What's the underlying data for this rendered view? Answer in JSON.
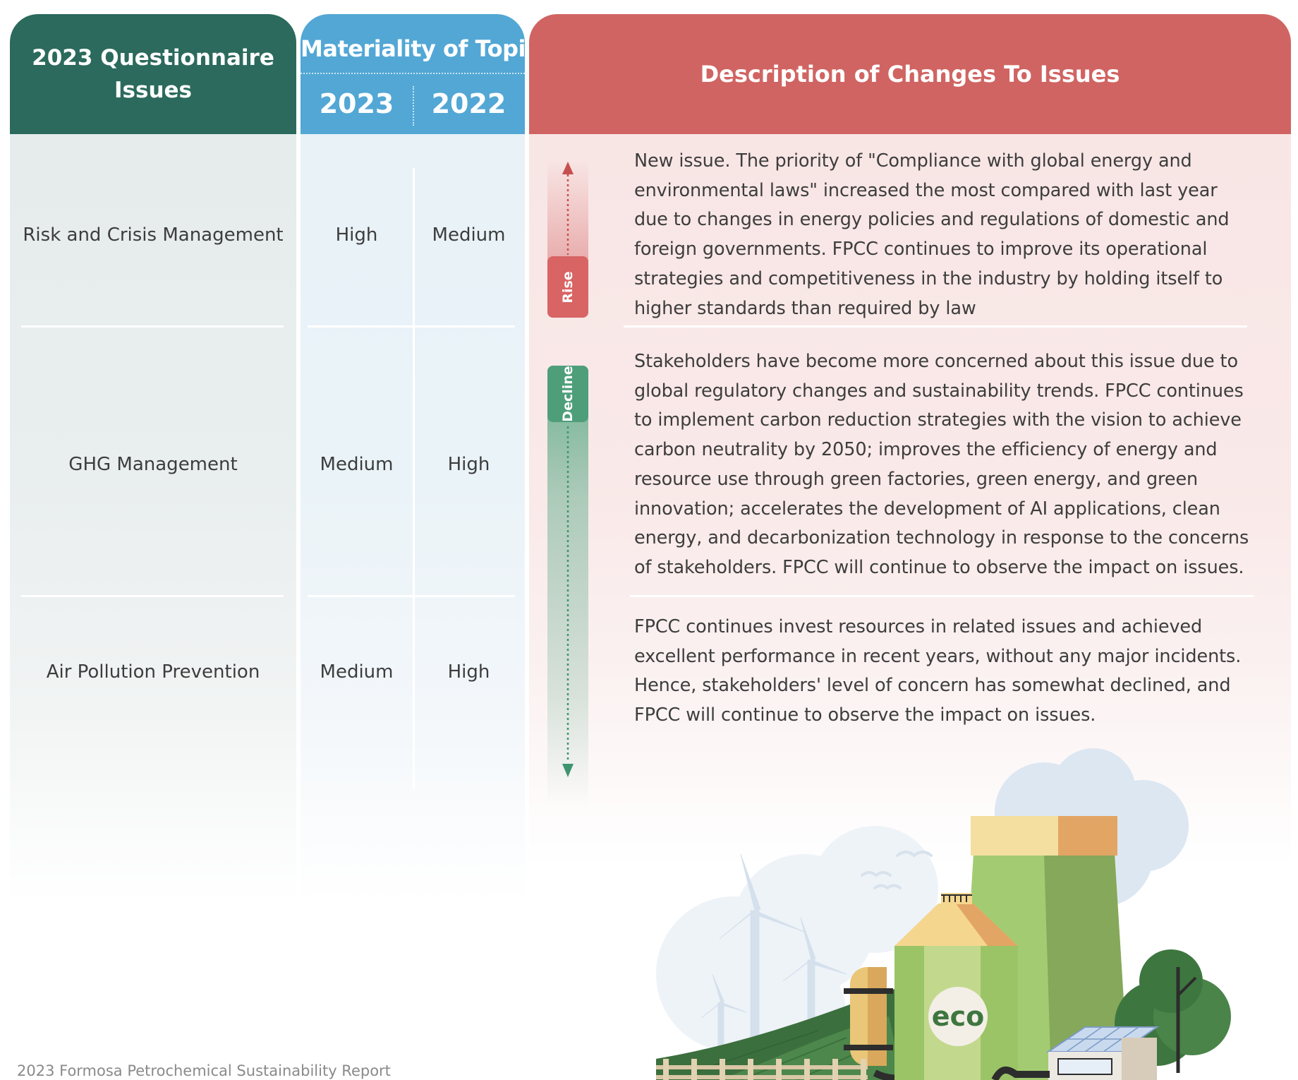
{
  "header": {
    "issues_title": "2023 Questionnaire Issues",
    "materiality_title": "Materiality of Topic",
    "year_current": "2023",
    "year_previous": "2022",
    "description_title": "Description of Changes To Issues"
  },
  "rows": [
    {
      "issue": "Risk and Crisis Management",
      "current": "High",
      "previous": "Medium",
      "description": "New issue. The priority of \"Compliance with global energy and environmental laws\" increased the most compared with last year due to changes in energy policies and regulations of domestic and foreign governments. FPCC continues to improve its operational strategies and competitiveness in the industry by holding itself to higher standards than required by law"
    },
    {
      "issue": "GHG Management",
      "current": "Medium",
      "previous": "High",
      "description": "Stakeholders have become more concerned about this issue due to global regulatory changes and sustainability trends. FPCC continues to implement carbon reduction strategies with the vision to achieve carbon neutrality by 2050; improves the efficiency of energy and resource use through green factories, green energy, and green innovation; accelerates the development of AI applications, clean energy, and decarbonization technology in response to the concerns of stakeholders. FPCC will continue to observe the impact on issues."
    },
    {
      "issue": "Air Pollution Prevention",
      "current": "Medium",
      "previous": "High",
      "description": "FPCC continues invest resources in related issues and achieved excellent performance in recent years, without any major incidents. Hence, stakeholders' level of concern has somewhat declined, and FPCC will continue to observe the impact on issues."
    }
  ],
  "indicators": {
    "rise_label": "Rise",
    "decline_label": "Decline"
  },
  "illustration": {
    "eco_label": "eco"
  },
  "footer": {
    "text": "2023 Formosa Petrochemical Sustainability Report"
  },
  "colors": {
    "issues_header": "#2b6a5d",
    "materiality_header": "#52a7d5",
    "description_header": "#d06462",
    "rise": "#d86464",
    "decline": "#4e9e7a"
  }
}
